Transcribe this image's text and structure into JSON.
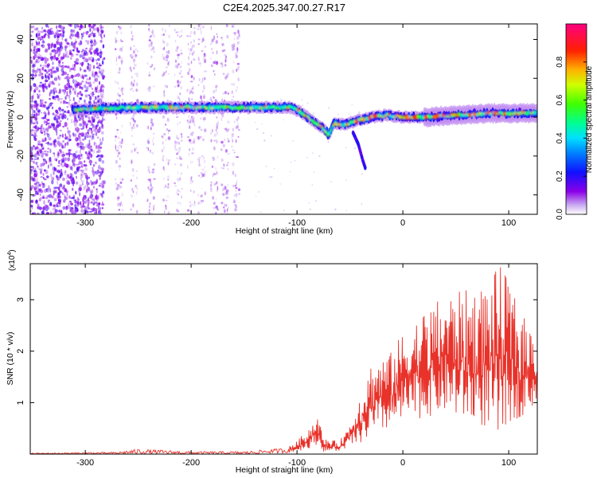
{
  "title": "C2E4.2025.347.00.27.R17",
  "chart_data": [
    {
      "type": "heatmap",
      "name": "spectrogram",
      "xlabel": "Height of straight line (km)",
      "ylabel": "Frequency (Hz)",
      "xlim": [
        -352,
        127
      ],
      "ylim": [
        -50,
        48
      ],
      "xticks": [
        -300,
        -200,
        -100,
        0,
        100
      ],
      "yticks": [
        -40,
        -20,
        0,
        20,
        40
      ],
      "xtick_labels": [
        "-300",
        "-200",
        "-100",
        "0",
        "100"
      ],
      "ytick_labels": [
        "-40",
        "-20",
        "0",
        "20",
        "40"
      ],
      "colorbar": {
        "label": "Normalized spectral amplitude",
        "range": [
          0,
          1
        ],
        "ticks": [
          0.0,
          0.2,
          0.4,
          0.6,
          0.8
        ],
        "tick_labels": [
          "0.0",
          "0.2",
          "0.4",
          "0.6",
          "0.8"
        ]
      },
      "ridge": {
        "description_points_x": [
          -310,
          -250,
          -200,
          -150,
          -125,
          -105,
          -95,
          -85,
          -75,
          -70,
          -65,
          -55,
          -45,
          -30,
          -15,
          0,
          20,
          50,
          80,
          100,
          127
        ],
        "description_points_freq": [
          4,
          5,
          5,
          5,
          5,
          5,
          2,
          -2,
          -6,
          -9,
          -3,
          -4,
          -2,
          0,
          1,
          0,
          0,
          1,
          2,
          2,
          2
        ]
      },
      "branch": {
        "x": [
          -47,
          -42,
          -38,
          -35
        ],
        "freq": [
          -8,
          -14,
          -22,
          -27
        ]
      }
    },
    {
      "type": "line",
      "name": "snr",
      "xlabel": "Height of straight line (km)",
      "ylabel": "SNR (10 * v/v)",
      "scale_label": "(x10",
      "scale_exp": "4",
      "scale_close": ")",
      "xlim": [
        -352,
        127
      ],
      "ylim": [
        0,
        3.7
      ],
      "xticks": [
        -300,
        -200,
        -100,
        0,
        100
      ],
      "yticks": [
        1,
        2,
        3
      ],
      "xtick_labels": [
        "-300",
        "-200",
        "-100",
        "0",
        "100"
      ],
      "ytick_labels": [
        "1",
        "2",
        "3"
      ],
      "color": "#e8322a",
      "envelope_x": [
        -352,
        -270,
        -250,
        -200,
        -150,
        -110,
        -100,
        -90,
        -80,
        -75,
        -60,
        -50,
        -40,
        -30,
        -20,
        -10,
        0,
        20,
        40,
        60,
        80,
        90,
        100,
        110,
        127
      ],
      "envelope_upper": [
        0.02,
        0.04,
        0.1,
        0.05,
        0.05,
        0.12,
        0.25,
        0.5,
        0.75,
        0.3,
        0.25,
        0.6,
        1.2,
        1.8,
        1.9,
        2.0,
        2.4,
        2.8,
        3.1,
        3.2,
        3.3,
        3.7,
        3.4,
        2.8,
        2.3
      ],
      "envelope_lower": [
        0.0,
        0.0,
        0.0,
        0.0,
        0.0,
        0.02,
        0.05,
        0.1,
        0.2,
        0.05,
        0.05,
        0.15,
        0.2,
        0.3,
        0.4,
        0.5,
        0.6,
        0.7,
        0.8,
        0.6,
        0.5,
        0.2,
        0.6,
        0.7,
        1.0
      ]
    }
  ]
}
